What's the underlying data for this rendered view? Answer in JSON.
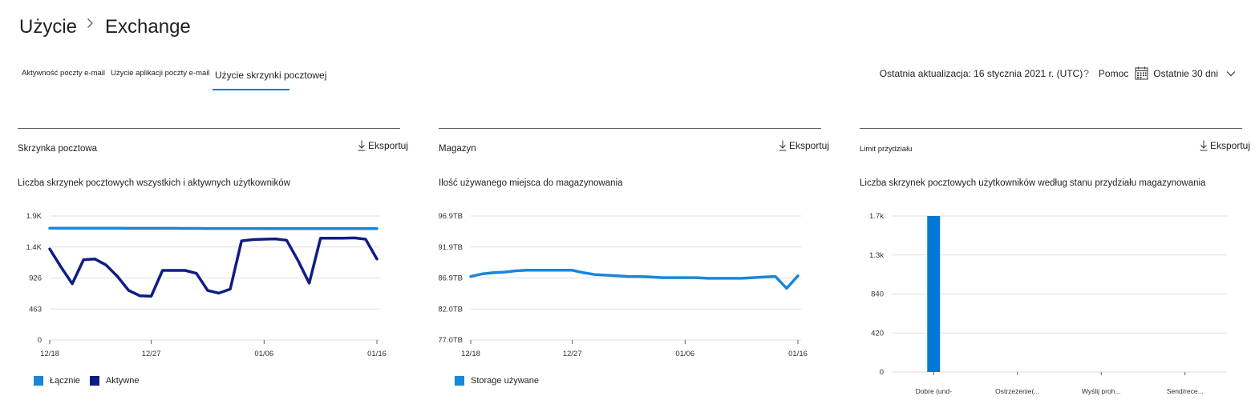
{
  "breadcrumb": {
    "parent": "Użycie",
    "current": "Exchange"
  },
  "tabs": [
    {
      "label": "Aktywność poczty e-mail"
    },
    {
      "label": "Użycie aplikacji poczty e-mail"
    },
    {
      "label": "Użycie skrzynki pocztowej"
    }
  ],
  "topbar": {
    "last_updated": "Ostatnia aktualizacja: 16 stycznia 2021 r. (UTC)",
    "help_glyph": "?",
    "help_label": "Pomoc",
    "period_label": "Ostatnie 30 dni",
    "icons": [
      "calendar-icon",
      "chevron-down-icon"
    ]
  },
  "colors": {
    "accent": "#0078d4",
    "total_series": "#1a86d9",
    "active_series": "#0f1d83",
    "storage_series": "#1a86d9",
    "quota_bar": "#0078d4"
  },
  "cards": [
    {
      "title": "Skrzynka pocztowa",
      "export_label": "Eksportuj"
    },
    {
      "title": "Magazyn",
      "export_label": "Eksportuj"
    },
    {
      "title": "Limit przydziału",
      "export_label": "Eksportuj"
    }
  ],
  "chart_data": [
    {
      "type": "line",
      "title": "Liczba skrzynek pocztowych wszystkich i aktywnych użytkowników",
      "y_ticks": [
        "0",
        "463",
        "926",
        "1.4K",
        "1.9K"
      ],
      "ylim": [
        0,
        1852
      ],
      "x_ticks": [
        "12/18",
        "12/27",
        "01/06",
        "01/16"
      ],
      "x_tick_index": [
        0,
        9,
        19,
        29
      ],
      "grid": true,
      "legend": "bottom-left",
      "series": [
        {
          "name": "Łącznie",
          "values": [
            1670,
            1670,
            1670,
            1670,
            1669,
            1669,
            1669,
            1668,
            1668,
            1668,
            1668,
            1668,
            1667,
            1667,
            1666,
            1666,
            1666,
            1666,
            1666,
            1665,
            1665,
            1665,
            1665,
            1664,
            1664,
            1664,
            1663,
            1663,
            1663,
            1663
          ]
        },
        {
          "name": "Aktywne",
          "values": [
            1360,
            1090,
            840,
            1200,
            1210,
            1120,
            950,
            740,
            660,
            655,
            1040,
            1040,
            1040,
            995,
            740,
            700,
            760,
            1480,
            1500,
            1505,
            1510,
            1490,
            1190,
            850,
            1520,
            1520,
            1520,
            1525,
            1505,
            1210
          ]
        }
      ]
    },
    {
      "type": "line",
      "title": "Ilość używanego miejsca do magazynowania",
      "y_ticks": [
        "77.0TB",
        "82.0TB",
        "86.9TB",
        "91.9TB",
        "96.9TB"
      ],
      "ylim": [
        77.0,
        96.9
      ],
      "x_ticks": [
        "12/18",
        "12/27",
        "01/06",
        "01/16"
      ],
      "x_tick_index": [
        0,
        9,
        19,
        29
      ],
      "grid": true,
      "legend": "bottom-left",
      "series": [
        {
          "name": "Storage używane",
          "values": [
            87.2,
            87.6,
            87.8,
            87.9,
            88.1,
            88.2,
            88.2,
            88.2,
            88.2,
            88.2,
            87.8,
            87.5,
            87.4,
            87.3,
            87.2,
            87.2,
            87.1,
            87.0,
            87.0,
            87.0,
            87.0,
            86.9,
            86.9,
            86.9,
            86.9,
            87.0,
            87.1,
            87.2,
            85.3,
            87.3
          ]
        }
      ]
    },
    {
      "type": "bar",
      "title": "Liczba skrzynek pocztowych użytkowników według stanu przydziału magazynowania",
      "categories": [
        "Dobre (und-",
        "Ostrzeżenie(...",
        "Wyślij proh...",
        "Send/rece..."
      ],
      "values": [
        1700,
        0,
        0,
        0
      ],
      "y_ticks": [
        "0",
        "420",
        "840",
        "1.3k",
        "1.7k"
      ],
      "ylim": [
        0,
        1700
      ],
      "grid": true
    }
  ]
}
